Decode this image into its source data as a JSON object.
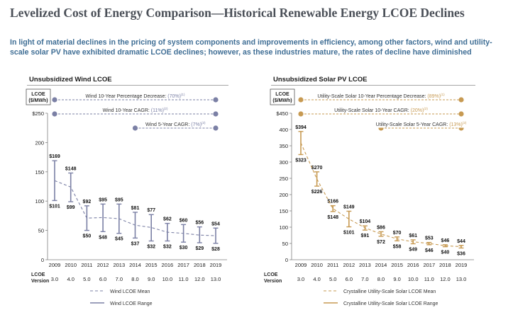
{
  "page": {
    "title": "Levelized Cost of Energy Comparison—Historical Renewable Energy LCOE Declines",
    "subtitle": "In light of material declines in the pricing of system components and improvements in efficiency, among other factors, wind and utility-scale solar PV have exhibited dramatic LCOE declines; however, as these industries mature, the rates of decline have diminished"
  },
  "colors": {
    "wind": "#7b80a5",
    "solar": "#c79a52",
    "title": "#4a4f57",
    "subtitle": "#3f6e95"
  },
  "chart_data": [
    {
      "type": "line",
      "title": "Unsubsidized Wind LCOE",
      "ylabel": "LCOE ($/MWh)",
      "ylabel_lines": [
        "LCOE",
        "($/MWh)"
      ],
      "ylim": [
        0,
        250
      ],
      "yticks": [
        0,
        50,
        100,
        150,
        200,
        250
      ],
      "ytick_labels": [
        "0",
        "50",
        "100",
        "150",
        "200",
        "$250"
      ],
      "categories": [
        "2009",
        "2010",
        "2011",
        "2012",
        "2013",
        "2014",
        "2015",
        "2016",
        "2017",
        "2018",
        "2019"
      ],
      "versions": [
        "3.0",
        "4.0",
        "5.0",
        "6.0",
        "7.0",
        "8.0",
        "9.0",
        "10.0",
        "11.0",
        "12.0",
        "13.0"
      ],
      "version_label": [
        "LCOE",
        "Version"
      ],
      "series": [
        {
          "name": "Wind LCOE Mean",
          "style": "dashed",
          "values": [
            135,
            124,
            71,
            72,
            70,
            59,
            55,
            47,
            45,
            42,
            41
          ]
        },
        {
          "name": "Wind LCOE Range",
          "style": "range",
          "high": [
            169,
            148,
            92,
            95,
            95,
            81,
            77,
            62,
            60,
            56,
            54
          ],
          "low": [
            101,
            99,
            50,
            48,
            45,
            37,
            32,
            32,
            30,
            29,
            28
          ],
          "high_labels": [
            "$169",
            "$148",
            "$92",
            "$95",
            "$95",
            "$81",
            "$77",
            "$62",
            "$60",
            "$56",
            "$54"
          ],
          "low_labels": [
            "$101",
            "$99",
            "$50",
            "$48",
            "$45",
            "$37",
            "$32",
            "$32",
            "$30",
            "$29",
            "$28"
          ]
        }
      ],
      "annotations": [
        {
          "text": "Wind 10-Year Percentage Decrease:",
          "value": "(70%)",
          "note": "(1)",
          "from": "2009",
          "to": "2019"
        },
        {
          "text": "Wind 10-Year CAGR:",
          "value": "(11%)",
          "note": "(2)",
          "from": "2009",
          "to": "2019"
        },
        {
          "text": "Wind 5-Year CAGR:",
          "value": "(7%)",
          "note": "(2)",
          "from": "2014",
          "to": "2019"
        }
      ]
    },
    {
      "type": "line",
      "title": "Unsubsidized Solar PV LCOE",
      "ylabel": "LCOE ($/MWh)",
      "ylabel_lines": [
        "LCOE",
        "($/MWh)"
      ],
      "ylim": [
        0,
        450
      ],
      "yticks": [
        0,
        50,
        100,
        150,
        200,
        250,
        300,
        350,
        400,
        450
      ],
      "ytick_labels": [
        "0",
        "50",
        "100",
        "150",
        "200",
        "250",
        "300",
        "350",
        "400",
        "$450"
      ],
      "categories": [
        "2009",
        "2010",
        "2011",
        "2012",
        "2013",
        "2014",
        "2015",
        "2016",
        "2017",
        "2018",
        "2019"
      ],
      "versions": [
        "3.0",
        "4.0",
        "5.0",
        "6.0",
        "7.0",
        "8.0",
        "9.0",
        "10.0",
        "11.0",
        "12.0",
        "13.0"
      ],
      "version_label": [
        "LCOE",
        "Version"
      ],
      "series": [
        {
          "name": "Crystalline Utility-Scale Solar LCOE Mean",
          "style": "dashed",
          "values": [
            359,
            248,
            157,
            125,
            98,
            79,
            64,
            55,
            50,
            43,
            40
          ]
        },
        {
          "name": "Crystalline Utility-Scale Solar LCOE Range",
          "style": "range",
          "high": [
            394,
            270,
            166,
            149,
            104,
            86,
            70,
            61,
            53,
            46,
            44
          ],
          "low": [
            323,
            226,
            148,
            101,
            91,
            72,
            58,
            49,
            46,
            40,
            36
          ],
          "high_labels": [
            "$394",
            "$270",
            "$166",
            "$149",
            "$104",
            "$86",
            "$70",
            "$61",
            "$53",
            "$46",
            "$44"
          ],
          "low_labels": [
            "$323",
            "$226",
            "$148",
            "$101",
            "$91",
            "$72",
            "$58",
            "$49",
            "$46",
            "$40",
            "$36"
          ]
        }
      ],
      "annotations": [
        {
          "text": "Utility-Scale Solar 10-Year Percentage Decrease:",
          "value": "(89%)",
          "note": "(1)",
          "from": "2009",
          "to": "2019"
        },
        {
          "text": "Utility-Scale Solar 10-Year CAGR:",
          "value": "(20%)",
          "note": "(2)",
          "from": "2009",
          "to": "2019"
        },
        {
          "text": "Utility-Scale Solar 5-Year CAGR:",
          "value": "(13%)",
          "note": "(2)",
          "from": "2014",
          "to": "2019"
        }
      ]
    }
  ]
}
